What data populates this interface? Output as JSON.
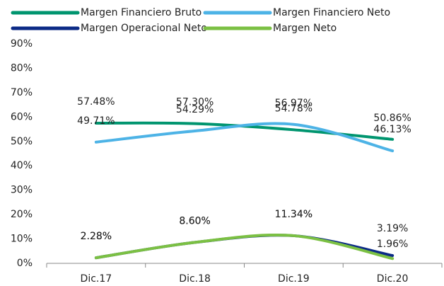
{
  "chart_data": {
    "type": "line",
    "categories": [
      "Dic.17",
      "Dic.18",
      "Dic.19",
      "Dic.20"
    ],
    "series": [
      {
        "name": "Margen Financiero Bruto",
        "color": "#00956f",
        "values": [
          57.48,
          57.3,
          54.78,
          50.86
        ],
        "value_labels": [
          "57.48%",
          "57.30%",
          "54.78%",
          "50.86%"
        ]
      },
      {
        "name": "Margen Financiero Neto",
        "color": "#4db3e6",
        "values": [
          49.71,
          54.29,
          56.97,
          46.13
        ],
        "value_labels": [
          "49.71%",
          "54.29%",
          "56.97%",
          "46.13%"
        ]
      },
      {
        "name": "Margen Operacional Neto",
        "color": "#0b2a86",
        "values": [
          2.28,
          8.6,
          11.34,
          3.19
        ],
        "value_labels": [
          "2.28%",
          "8.60%",
          "11.34%",
          "3.19%"
        ]
      },
      {
        "name": "Margen Neto",
        "color": "#7bc043",
        "values": [
          2.28,
          8.6,
          11.34,
          1.96
        ],
        "value_labels": [
          "2.28%",
          "8.60%",
          "11.34%",
          "1.96%"
        ]
      }
    ],
    "ylim": [
      0,
      90
    ],
    "yticks": [
      {
        "value": 0,
        "label": "0%"
      },
      {
        "value": 10,
        "label": "10%"
      },
      {
        "value": 20,
        "label": "20%"
      },
      {
        "value": 30,
        "label": "30%"
      },
      {
        "value": 40,
        "label": "40%"
      },
      {
        "value": 50,
        "label": "50%"
      },
      {
        "value": 60,
        "label": "60%"
      },
      {
        "value": 70,
        "label": "70%"
      },
      {
        "value": 80,
        "label": "80%"
      },
      {
        "value": 90,
        "label": "90%"
      }
    ],
    "grid": false,
    "legend": "top"
  }
}
